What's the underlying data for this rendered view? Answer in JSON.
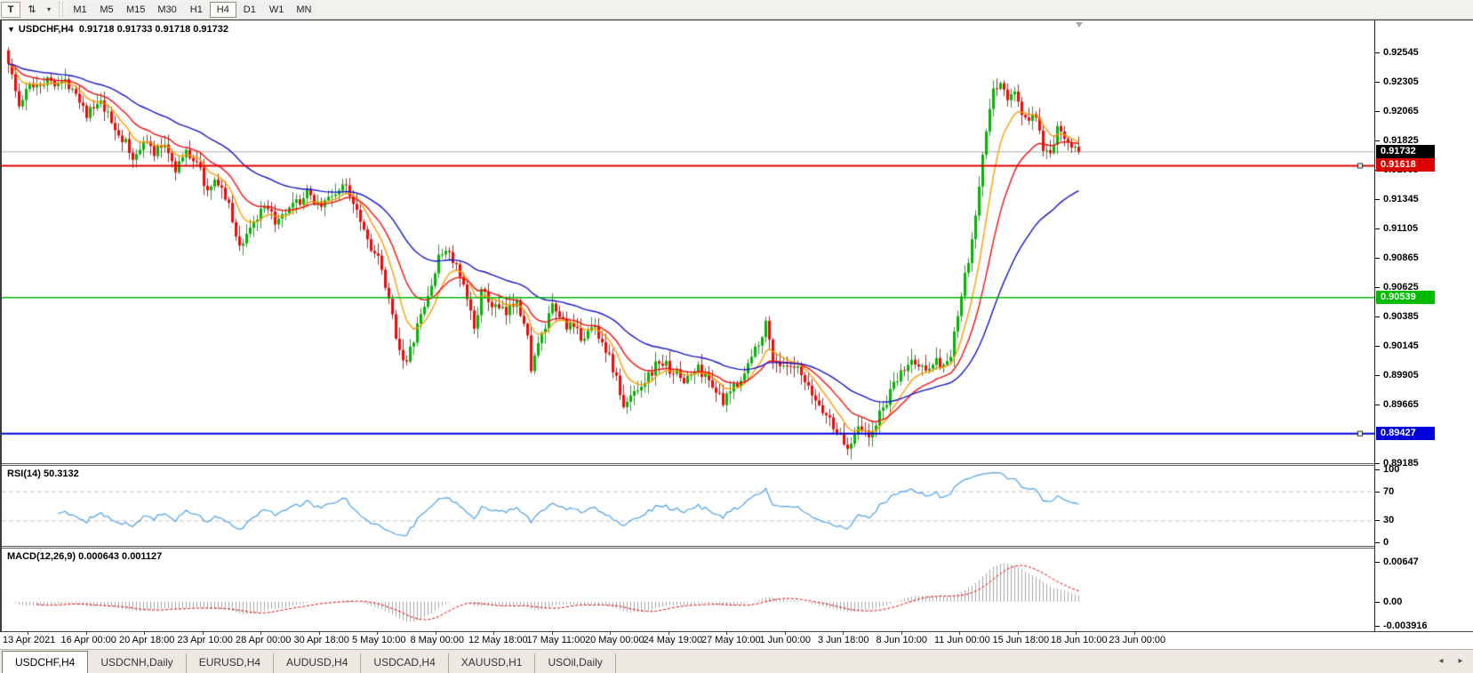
{
  "toolbar": {
    "text_tool_label": "T",
    "cycle_icon": "⇅",
    "caret_icon": "▾",
    "timeframes": [
      {
        "label": "M1",
        "active": false
      },
      {
        "label": "M5",
        "active": false
      },
      {
        "label": "M15",
        "active": false
      },
      {
        "label": "M30",
        "active": false
      },
      {
        "label": "H1",
        "active": false
      },
      {
        "label": "H4",
        "active": true
      },
      {
        "label": "D1",
        "active": false
      },
      {
        "label": "W1",
        "active": false
      },
      {
        "label": "MN",
        "active": false
      }
    ]
  },
  "chart": {
    "collapse_icon": "▼",
    "title": "USDCHF,H4",
    "ohlc_values": "0.91718 0.91733 0.91718 0.91732",
    "axis_ticks": [
      {
        "label": "0.92545",
        "price": 0.92545
      },
      {
        "label": "0.92305",
        "price": 0.92305
      },
      {
        "label": "0.92065",
        "price": 0.92065
      },
      {
        "label": "0.91825",
        "price": 0.91825
      },
      {
        "label": "0.91585",
        "price": 0.91585
      },
      {
        "label": "0.91345",
        "price": 0.91345
      },
      {
        "label": "0.91105",
        "price": 0.91105
      },
      {
        "label": "0.90865",
        "price": 0.90865
      },
      {
        "label": "0.90625",
        "price": 0.90625
      },
      {
        "label": "0.90385",
        "price": 0.90385
      },
      {
        "label": "0.90145",
        "price": 0.90145
      },
      {
        "label": "0.89905",
        "price": 0.89905
      },
      {
        "label": "0.89665",
        "price": 0.89665
      },
      {
        "label": "0.89185",
        "price": 0.89185
      }
    ],
    "badges": [
      {
        "name": "current-price-badge",
        "label": "0.91732",
        "price": 0.91732,
        "bg": "#000000",
        "fg": "#ffffff"
      },
      {
        "name": "resistance-line-badge",
        "label": "0.91618",
        "price": 0.91618,
        "bg": "#dd0000",
        "fg": "#ffffff"
      },
      {
        "name": "mid-level-line-badge",
        "label": "0.90539",
        "price": 0.90539,
        "bg": "#00bb00",
        "fg": "#ffffff"
      },
      {
        "name": "support-line-badge",
        "label": "0.89427",
        "price": 0.89427,
        "bg": "#0000dd",
        "fg": "#ffffff"
      }
    ],
    "hlines": [
      {
        "price": 0.91732,
        "color": "#ababab",
        "width": 1,
        "under": true,
        "handle": false
      },
      {
        "price": 0.91618,
        "color": "#dd0000",
        "width": 2,
        "under": false,
        "handle": true
      },
      {
        "price": 0.90539,
        "color": "#00bb00",
        "width": 1.5,
        "under": false,
        "handle": false
      },
      {
        "price": 0.89427,
        "color": "#0000dd",
        "width": 2,
        "under": false,
        "handle": true
      }
    ]
  },
  "rsi": {
    "label": "RSI(14) 50.3132",
    "period": 14,
    "line_color": "#4aa0e8",
    "level_color": "#c3c3c3",
    "levels": [
      70,
      30
    ],
    "axis_ticks": [
      {
        "label": "100",
        "value": 100
      },
      {
        "label": "70",
        "value": 70
      },
      {
        "label": "30",
        "value": 30
      },
      {
        "label": "0",
        "value": 0
      }
    ]
  },
  "macd": {
    "label": "MACD(12,26,9) 0.000643 0.001127",
    "fast": 12,
    "slow": 26,
    "signal": 9,
    "hist_color": "#a8a8a8",
    "signal_color": "#e00000",
    "axis_ticks": [
      {
        "label": "0.00647",
        "value": 0.00647
      },
      {
        "label": "0.00",
        "value": 0
      },
      {
        "label": "-0.003916",
        "value": -0.003916
      }
    ]
  },
  "dates": [
    "13 Apr 2021",
    "16 Apr 00:00",
    "20 Apr 18:00",
    "23 Apr 10:00",
    "28 Apr 00:00",
    "30 Apr 18:00",
    "5 May 10:00",
    "8 May 00:00",
    "12 May 18:00",
    "17 May 11:00",
    "20 May 00:00",
    "24 May 19:00",
    "27 May 10:00",
    "1 Jun 00:00",
    "3 Jun 18:00",
    "8 Jun 10:00",
    "11 Jun 00:00",
    "15 Jun 18:00",
    "18 Jun 10:00",
    "23 Jun 00:00"
  ],
  "tabs": [
    {
      "label": "USDCHF,H4",
      "active": true
    },
    {
      "label": "USDCNH,Daily",
      "active": false
    },
    {
      "label": "EURUSD,H4",
      "active": false
    },
    {
      "label": "AUDUSD,H4",
      "active": false
    },
    {
      "label": "USDCAD,H4",
      "active": false
    },
    {
      "label": "XAUUSD,H1",
      "active": false
    },
    {
      "label": "USOil,Daily",
      "active": false
    }
  ],
  "tab_scroll": {
    "left_icon": "◂",
    "right_icon": "▸"
  },
  "chart_data": {
    "type": "candlestick",
    "symbol": "USDCHF",
    "timeframe": "H4",
    "num_candles": 302,
    "final_close": 0.91732,
    "up_color": "#0fad0f",
    "down_color": "#e01010",
    "y_axis_range": [
      0.89185,
      0.92807
    ],
    "moving_averages": [
      {
        "period": 9,
        "color": "#ff9a00"
      },
      {
        "period": 19,
        "color": "#f01010"
      },
      {
        "period": 45,
        "color": "#1414cc"
      }
    ],
    "close_anchors": [
      [
        0,
        0.9248
      ],
      [
        3,
        0.921
      ],
      [
        6,
        0.9228
      ],
      [
        12,
        0.9232
      ],
      [
        18,
        0.9228
      ],
      [
        22,
        0.9205
      ],
      [
        26,
        0.9212
      ],
      [
        30,
        0.9192
      ],
      [
        33,
        0.918
      ],
      [
        35,
        0.9165
      ],
      [
        38,
        0.9185
      ],
      [
        41,
        0.9172
      ],
      [
        44,
        0.918
      ],
      [
        47,
        0.916
      ],
      [
        50,
        0.9172
      ],
      [
        53,
        0.9166
      ],
      [
        56,
        0.914
      ],
      [
        59,
        0.915
      ],
      [
        62,
        0.9128
      ],
      [
        65,
        0.9095
      ],
      [
        68,
        0.9112
      ],
      [
        72,
        0.9126
      ],
      [
        76,
        0.9115
      ],
      [
        80,
        0.9128
      ],
      [
        84,
        0.9138
      ],
      [
        88,
        0.913
      ],
      [
        92,
        0.914
      ],
      [
        95,
        0.9145
      ],
      [
        98,
        0.9128
      ],
      [
        101,
        0.9102
      ],
      [
        104,
        0.9085
      ],
      [
        107,
        0.905
      ],
      [
        110,
        0.9012
      ],
      [
        112,
        0.9
      ],
      [
        115,
        0.903
      ],
      [
        118,
        0.9055
      ],
      [
        121,
        0.9085
      ],
      [
        123,
        0.9095
      ],
      [
        126,
        0.9078
      ],
      [
        129,
        0.9052
      ],
      [
        131,
        0.903
      ],
      [
        133,
        0.9058
      ],
      [
        136,
        0.9048
      ],
      [
        140,
        0.904
      ],
      [
        143,
        0.9055
      ],
      [
        146,
        0.902
      ],
      [
        147,
        0.8998
      ],
      [
        150,
        0.9022
      ],
      [
        153,
        0.9045
      ],
      [
        157,
        0.9032
      ],
      [
        161,
        0.9022
      ],
      [
        165,
        0.903
      ],
      [
        168,
        0.9012
      ],
      [
        171,
        0.8988
      ],
      [
        173,
        0.8962
      ],
      [
        176,
        0.8978
      ],
      [
        180,
        0.899
      ],
      [
        183,
        0.9002
      ],
      [
        187,
        0.8994
      ],
      [
        190,
        0.8986
      ],
      [
        194,
        0.8996
      ],
      [
        198,
        0.8984
      ],
      [
        201,
        0.8966
      ],
      [
        204,
        0.8982
      ],
      [
        207,
        0.8992
      ],
      [
        210,
        0.9012
      ],
      [
        213,
        0.9032
      ],
      [
        215,
        0.9005
      ],
      [
        218,
        0.8996
      ],
      [
        222,
        0.8994
      ],
      [
        225,
        0.8978
      ],
      [
        229,
        0.8962
      ],
      [
        233,
        0.8945
      ],
      [
        236,
        0.893
      ],
      [
        239,
        0.8952
      ],
      [
        242,
        0.8938
      ],
      [
        245,
        0.8958
      ],
      [
        248,
        0.8975
      ],
      [
        251,
        0.8992
      ],
      [
        254,
        0.9002
      ],
      [
        257,
        0.8996
      ],
      [
        260,
        0.9002
      ],
      [
        263,
        0.8999
      ],
      [
        265,
        0.9005
      ],
      [
        267,
        0.904
      ],
      [
        269,
        0.907
      ],
      [
        271,
        0.9098
      ],
      [
        273,
        0.9145
      ],
      [
        275,
        0.919
      ],
      [
        277,
        0.9222
      ],
      [
        279,
        0.9232
      ],
      [
        281,
        0.9215
      ],
      [
        283,
        0.9222
      ],
      [
        285,
        0.9205
      ],
      [
        287,
        0.9198
      ],
      [
        289,
        0.9203
      ],
      [
        291,
        0.917
      ],
      [
        293,
        0.9172
      ],
      [
        295,
        0.919
      ],
      [
        297,
        0.9188
      ],
      [
        299,
        0.918
      ],
      [
        301,
        0.9173
      ]
    ]
  }
}
